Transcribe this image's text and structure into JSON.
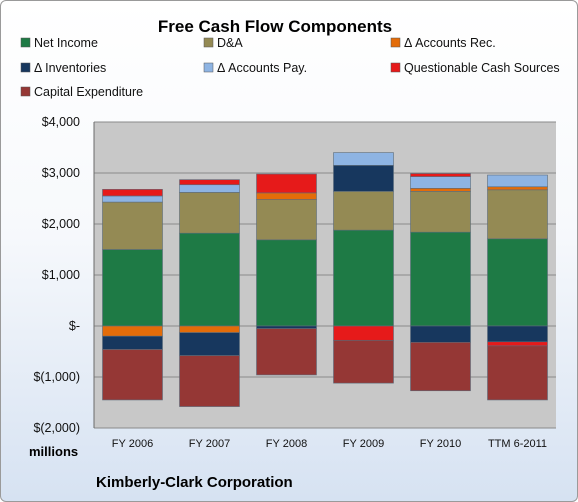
{
  "chart_data": {
    "type": "bar",
    "stacked": true,
    "title": "Free Cash Flow Components",
    "unit_label": "millions",
    "footer": "Kimberly-Clark Corporation",
    "categories": [
      "FY 2006",
      "FY 2007",
      "FY 2008",
      "FY 2009",
      "FY 2010",
      "TTM 6-2011"
    ],
    "ylim": [
      -2000,
      4000
    ],
    "yticks": [
      4000,
      3000,
      2000,
      1000,
      0,
      -1000,
      -2000
    ],
    "ytick_labels": [
      "$4,000",
      "$3,000",
      "$2,000",
      "$1,000",
      "$-",
      "$(1,000)",
      "$(2,000)"
    ],
    "grid": true,
    "legend_position": "top",
    "series": [
      {
        "name": "Net Income",
        "color": "#1e7a45",
        "values": [
          1500,
          1820,
          1690,
          1880,
          1840,
          1710
        ]
      },
      {
        "name": "D&A",
        "color": "#948a54",
        "values": [
          930,
          800,
          790,
          760,
          800,
          960
        ]
      },
      {
        "name": "Δ Accounts Rec.",
        "color": "#e36c09",
        "values": [
          -200,
          -130,
          130,
          0,
          60,
          60
        ]
      },
      {
        "name": "Δ Inventories",
        "color": "#17375e",
        "values": [
          -260,
          -450,
          -50,
          510,
          -320,
          -310
        ]
      },
      {
        "name": "Δ Accounts Pay.",
        "color": "#8eb4e3",
        "values": [
          120,
          150,
          0,
          250,
          230,
          230
        ]
      },
      {
        "name": "Questionable Cash Sources",
        "color": "#e61a1a",
        "values": [
          130,
          100,
          370,
          -280,
          60,
          -80
        ]
      },
      {
        "name": "Capital Expenditure",
        "color": "#953735",
        "values": [
          -990,
          -1000,
          -910,
          -840,
          -950,
          -1060
        ]
      }
    ]
  }
}
